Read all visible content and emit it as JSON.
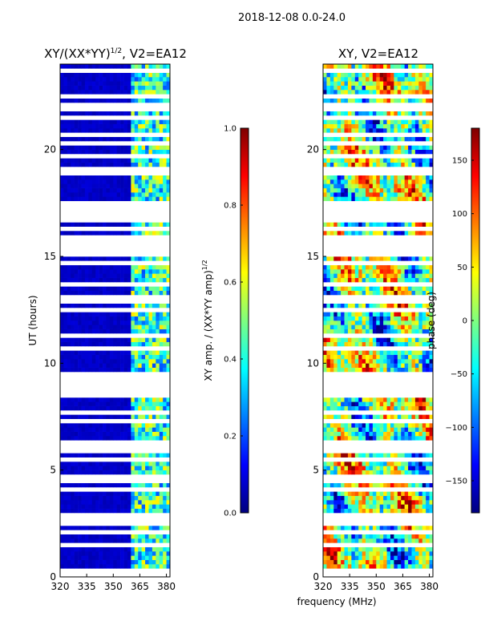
{
  "figure_title": "2018-12-08 0.0-24.0",
  "xlabel_shared": "frequency (MHz)",
  "colormap": [
    "#00007f",
    "#0000ff",
    "#007fff",
    "#00ffff",
    "#7fff7f",
    "#ffff00",
    "#ff7f00",
    "#ff0000",
    "#7f0000"
  ],
  "missing_color": "#ffffff",
  "chart_data": [
    {
      "type": "heatmap",
      "title": "XY/(XX*YY)^1/2, V2=EA12",
      "title_main": "XY/(XX*YY)",
      "title_sup": "1/2",
      "title_tail": ", V2=EA12",
      "xlabel": "frequency (MHz)",
      "ylabel": "UT (hours)",
      "xlim": [
        320,
        382
      ],
      "ylim": [
        0,
        24
      ],
      "xticks": [
        "320",
        "335",
        "350",
        "365",
        "380"
      ],
      "xtick_values": [
        320,
        335,
        350,
        365,
        380
      ],
      "yticks": [
        "0",
        "5",
        "10",
        "15",
        "20"
      ],
      "ytick_values": [
        0,
        5,
        10,
        15,
        20
      ],
      "colorbar": {
        "label_main": "XY amp. / (XX*YY amp)",
        "label_sup": "1/2",
        "range": [
          0.0,
          1.0
        ],
        "ticks": [
          "0.0",
          "0.2",
          "0.4",
          "0.6",
          "0.8",
          "1.0"
        ],
        "tick_values": [
          0.0,
          0.2,
          0.4,
          0.6,
          0.8,
          1.0
        ]
      },
      "data_gaps_hours": [
        [
          16.7,
          17.4
        ],
        [
          8.35,
          8.65
        ],
        [
          2.7,
          3.05
        ]
      ],
      "high_amplitude_band_mhz": [
        361,
        380
      ],
      "background_value": 0.05
    },
    {
      "type": "heatmap",
      "title": "XY, V2=EA12",
      "xlabel": "frequency (MHz)",
      "ylabel": "",
      "xlim": [
        320,
        382
      ],
      "ylim": [
        0,
        24
      ],
      "xticks": [
        "320",
        "335",
        "350",
        "365",
        "380"
      ],
      "xtick_values": [
        320,
        335,
        350,
        365,
        380
      ],
      "yticks": [
        "0",
        "5",
        "10",
        "15",
        "20"
      ],
      "ytick_values": [
        0,
        5,
        10,
        15,
        20
      ],
      "colorbar": {
        "label": "phase (deg)",
        "range": [
          -180,
          180
        ],
        "ticks": [
          "−150",
          "−100",
          "−50",
          "0",
          "50",
          "100",
          "150"
        ],
        "tick_values": [
          -150,
          -100,
          -50,
          0,
          50,
          100,
          150
        ]
      },
      "data_gaps_hours": [
        [
          16.7,
          17.4
        ],
        [
          8.35,
          8.65
        ],
        [
          2.7,
          3.05
        ]
      ]
    }
  ]
}
